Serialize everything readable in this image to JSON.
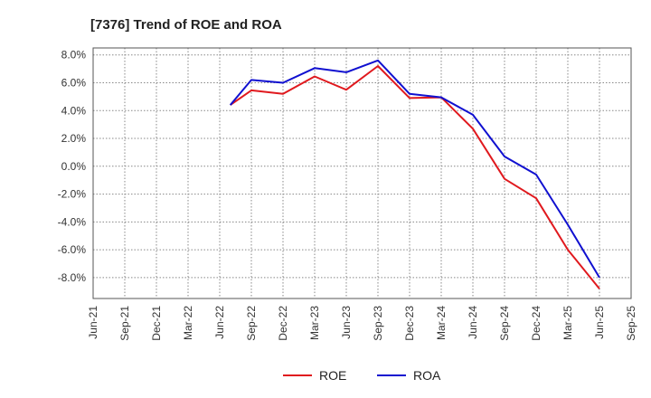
{
  "chart_data": {
    "type": "line",
    "title": "[7376]  Trend of ROE and ROA",
    "xlabel": "",
    "ylabel": "",
    "x_ticks": [
      "Jun-21",
      "Sep-21",
      "Dec-21",
      "Mar-22",
      "Jun-22",
      "Sep-22",
      "Dec-22",
      "Mar-23",
      "Jun-23",
      "Sep-23",
      "Dec-23",
      "Mar-24",
      "Jun-24",
      "Sep-24",
      "Dec-24",
      "Mar-25",
      "Jun-25",
      "Sep-25"
    ],
    "y_ticks": [
      "8.0%",
      "6.0%",
      "4.0%",
      "2.0%",
      "0.0%",
      "-2.0%",
      "-4.0%",
      "-6.0%",
      "-8.0%"
    ],
    "y_tick_values": [
      8,
      6,
      4,
      2,
      0,
      -2,
      -4,
      -6,
      -8
    ],
    "ylim": [
      -9.5,
      8.5
    ],
    "grid": true,
    "legend_position": "bottom",
    "series": [
      {
        "name": "ROE",
        "color": "#e0191e",
        "x": [
          "Jul-22",
          "Sep-22",
          "Dec-22",
          "Mar-23",
          "Jun-23",
          "Sep-23",
          "Dec-23",
          "Mar-24",
          "Jun-24",
          "Sep-24",
          "Dec-24",
          "Mar-25",
          "Jun-25"
        ],
        "values": [
          4.4,
          5.45,
          5.2,
          6.45,
          5.5,
          7.2,
          4.9,
          4.95,
          2.7,
          -0.9,
          -2.3,
          -6.0,
          -8.8
        ]
      },
      {
        "name": "ROA",
        "color": "#1010d0",
        "x": [
          "Jul-22",
          "Sep-22",
          "Dec-22",
          "Mar-23",
          "Jun-23",
          "Sep-23",
          "Dec-23",
          "Mar-24",
          "Jun-24",
          "Sep-24",
          "Dec-24",
          "Mar-25",
          "Jun-25"
        ],
        "values": [
          4.4,
          6.2,
          6.0,
          7.05,
          6.75,
          7.6,
          5.2,
          4.95,
          3.7,
          0.7,
          -0.6,
          -4.2,
          -8.0
        ]
      }
    ]
  }
}
